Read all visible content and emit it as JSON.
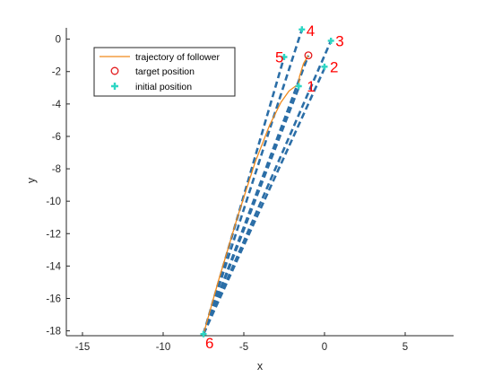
{
  "colors": {
    "dashed": "#2b6ea7",
    "follower": "#f08a1c",
    "target": "#e31a1c",
    "initial": "#2ed6c4",
    "node_label": "#ff0000",
    "axis": "#262626"
  },
  "chart_data": {
    "type": "line",
    "xlabel": "x",
    "ylabel": "y",
    "xlim": [
      -16,
      8
    ],
    "ylim": [
      -18.3,
      0.7
    ],
    "x_ticks": [
      -15,
      -10,
      -5,
      0,
      5
    ],
    "x_tick_labels": [
      "-15",
      "-10",
      "-5",
      "0",
      "5"
    ],
    "y_ticks": [
      0,
      -2,
      -4,
      -6,
      -8,
      -10,
      -12,
      -14,
      -16,
      -18
    ],
    "y_tick_labels": [
      "0",
      "-2",
      "-4",
      "-6",
      "-8",
      "-10",
      "-12",
      "-14",
      "-16",
      "-18"
    ],
    "legend": {
      "position": "top-left",
      "entries": [
        {
          "label": "trajectory of follower",
          "marker": "line",
          "color": "#f08a1c"
        },
        {
          "label": "target position",
          "marker": "circle",
          "color": "#e31a1c"
        },
        {
          "label": "initial position",
          "marker": "plus",
          "color": "#2ed6c4"
        }
      ]
    },
    "dashed_series": [
      {
        "x": [
          -7.5,
          -1.6
        ],
        "y": [
          -18.2,
          -3.0
        ]
      },
      {
        "x": [
          -7.5,
          0.0
        ],
        "y": [
          -18.2,
          -1.8
        ]
      },
      {
        "x": [
          -7.5,
          0.4
        ],
        "y": [
          -18.2,
          -0.1
        ]
      },
      {
        "x": [
          -7.5,
          -1.4
        ],
        "y": [
          -18.2,
          0.6
        ]
      },
      {
        "x": [
          -7.5,
          -2.5
        ],
        "y": [
          -18.2,
          -1.1
        ]
      },
      {
        "x": [
          -7.5,
          -1.0
        ],
        "y": [
          -18.2,
          -1.0
        ]
      }
    ],
    "follower_trajectory": {
      "x": [
        -7.5,
        -6.6,
        -5.4,
        -4.3,
        -3.4,
        -2.7,
        -2.2,
        -1.8,
        -1.6,
        -1.55,
        -1.3,
        -1.0
      ],
      "y": [
        -18.2,
        -15.0,
        -11.0,
        -7.6,
        -5.3,
        -3.9,
        -3.2,
        -2.9,
        -2.8,
        -2.3,
        -1.5,
        -1.0
      ]
    },
    "target_position": {
      "x": -1.0,
      "y": -1.0
    },
    "initial_positions": [
      {
        "label": "1",
        "x": -1.6,
        "y": -2.9
      },
      {
        "label": "2",
        "x": 0.0,
        "y": -1.7
      },
      {
        "label": "3",
        "x": 0.4,
        "y": -0.1
      },
      {
        "label": "4",
        "x": -1.4,
        "y": 0.6
      },
      {
        "label": "5",
        "x": -2.5,
        "y": -1.1
      },
      {
        "label": "6",
        "x": -7.5,
        "y": -18.2
      }
    ]
  }
}
